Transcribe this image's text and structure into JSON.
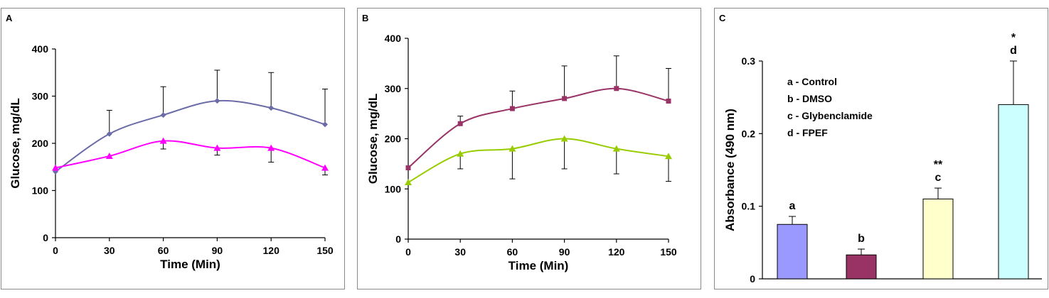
{
  "chart_data": [
    {
      "type": "line",
      "panel_label": "A",
      "xlabel": "Time (Min)",
      "ylabel": "Glucose, mg/dL",
      "x": [
        0,
        30,
        60,
        90,
        120,
        150
      ],
      "xticks": [
        "0",
        "30",
        "60",
        "90",
        "120",
        "150"
      ],
      "yticks": [
        "0",
        "100",
        "200",
        "300",
        "400"
      ],
      "ylim": [
        0,
        400
      ],
      "grid": false,
      "series": [
        {
          "values": [
            140,
            220,
            260,
            290,
            275,
            240
          ],
          "errors": [
            0,
            50,
            60,
            65,
            75,
            75
          ],
          "color": "#6b6ba8",
          "marker": "diamond"
        },
        {
          "values": [
            148,
            173,
            205,
            190,
            190,
            148
          ],
          "errors": [
            0,
            0,
            17,
            15,
            30,
            15
          ],
          "color": "#ff00ff",
          "marker": "triangle",
          "error_direction": "down"
        }
      ]
    },
    {
      "type": "line",
      "panel_label": "B",
      "xlabel": "Time  (Min)",
      "ylabel": "Glucose, mg/dL",
      "x": [
        0,
        30,
        60,
        90,
        120,
        150
      ],
      "xticks": [
        "0",
        "30",
        "60",
        "90",
        "120",
        "150"
      ],
      "yticks": [
        "0",
        "100",
        "200",
        "300",
        "400"
      ],
      "ylim": [
        0,
        400
      ],
      "grid": false,
      "series": [
        {
          "values": [
            142,
            230,
            260,
            280,
            300,
            275
          ],
          "errors": [
            0,
            15,
            35,
            65,
            65,
            65
          ],
          "color": "#993366",
          "marker": "square"
        },
        {
          "values": [
            113,
            170,
            180,
            200,
            180,
            165
          ],
          "errors": [
            0,
            30,
            60,
            60,
            50,
            50
          ],
          "color": "#99cc00",
          "marker": "triangle",
          "error_direction": "down"
        }
      ]
    },
    {
      "type": "bar",
      "panel_label": "C",
      "ylabel": "Absorbance (490 nm)",
      "categories": [
        "a",
        "b",
        "c",
        "d"
      ],
      "values": [
        0.075,
        0.033,
        0.11,
        0.24
      ],
      "errors": [
        0.011,
        0.008,
        0.015,
        0.06
      ],
      "significance": [
        "",
        "",
        "**",
        "*"
      ],
      "colors": [
        "#9999ff",
        "#993366",
        "#ffffcc",
        "#ccffff"
      ],
      "yticks": [
        "0",
        "0.1",
        "0.2",
        "0.3"
      ],
      "ylim": [
        0,
        0.3
      ],
      "grid": false,
      "legend": [
        "a - Control",
        "b - DMSO",
        "c - Glybenclamide",
        "d - FPEF"
      ],
      "legend_position": "top-left"
    }
  ]
}
